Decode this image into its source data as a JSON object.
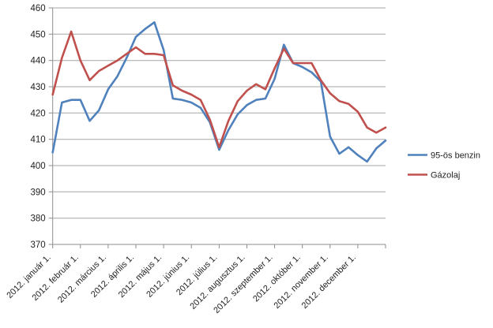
{
  "chart_data": {
    "type": "line",
    "x_tick_labels": [
      "2012. január 1.",
      "2012. február 1.",
      "2012. március 1.",
      "2012. április 1.",
      "2012. május 1.",
      "2012. június 1.",
      "2012. július 1.",
      "2012. augusztus 1.",
      "2012. szeptember 1.",
      "2012. október 1.",
      "2012. november 1.",
      "2012. december 1."
    ],
    "y_ticks": [
      370,
      380,
      390,
      400,
      410,
      420,
      430,
      440,
      450,
      460
    ],
    "ylim": [
      370,
      460
    ],
    "points_per_month": 3,
    "grid": "horizontal",
    "legend_position": "right",
    "series": [
      {
        "name": "95-ös benzin",
        "color": "#4F81BD",
        "values": [
          405,
          424,
          425,
          425,
          417,
          421,
          429,
          434,
          441,
          449,
          452,
          454.5,
          444,
          425.5,
          425,
          424,
          422,
          416.5,
          406,
          413.5,
          419.5,
          423,
          425,
          425.5,
          433,
          446,
          439,
          437.5,
          435.5,
          432,
          411,
          404.5,
          407,
          404,
          401.5,
          406.5,
          409.5
        ]
      },
      {
        "name": "Gázolaj",
        "color": "#C0504D",
        "values": [
          427,
          441,
          451,
          440,
          432.5,
          436,
          438,
          440,
          442.5,
          445,
          442.5,
          442.5,
          442,
          430.5,
          428.5,
          427,
          425,
          417.5,
          407,
          417,
          424.5,
          428.5,
          431,
          429,
          437,
          444.5,
          439,
          439,
          439,
          432.5,
          427.5,
          424.5,
          423.5,
          420.5,
          414.5,
          412.5,
          414.5
        ]
      }
    ],
    "axis_color": "#8C8C8C",
    "gridline_color": "#A6A6A6",
    "text_color": "#1f1f1f"
  }
}
